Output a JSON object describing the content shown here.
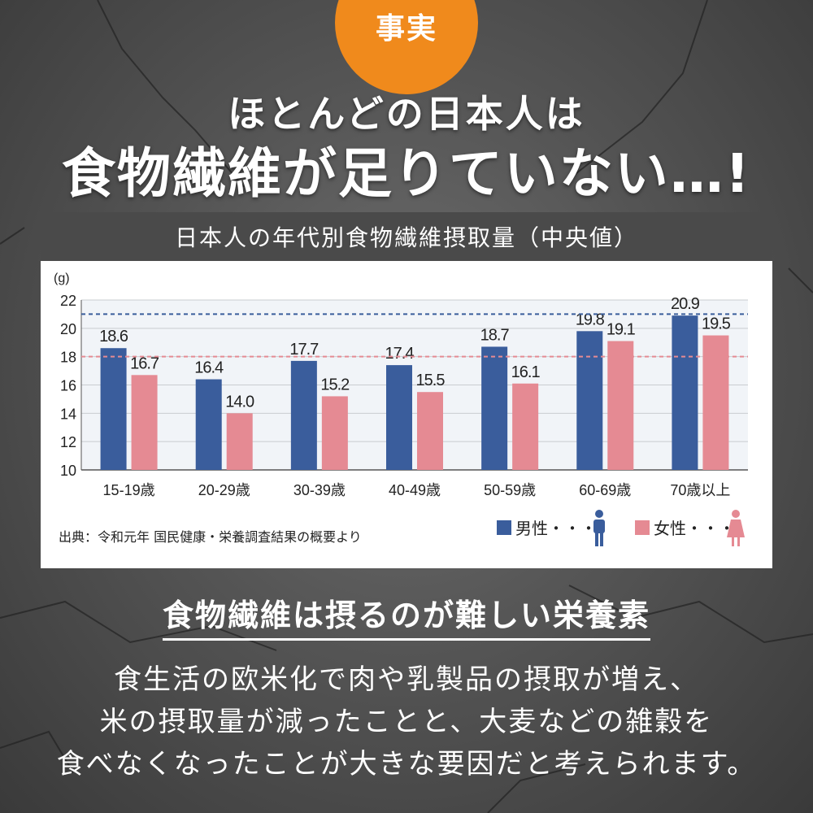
{
  "badge": "事実",
  "headline": {
    "line1": "ほとんどの日本人は",
    "line2": "食物繊維が足りていない…!"
  },
  "colors": {
    "male": "#3a5d9c",
    "female": "#e58a93",
    "badge": "#f08a1c"
  },
  "chart_data": {
    "type": "bar",
    "title": "日本人の年代別食物繊維摂取量（中央値）",
    "ylabel": "(g)",
    "ylim": [
      10,
      22
    ],
    "yticks": [
      "10",
      "12",
      "14",
      "16",
      "18",
      "20",
      "22"
    ],
    "categories": [
      "15-19歳",
      "20-29歳",
      "30-39歳",
      "40-49歳",
      "50-59歳",
      "60-69歳",
      "70歳以上"
    ],
    "series": [
      {
        "name": "男性",
        "values": [
          18.6,
          16.4,
          17.7,
          17.4,
          18.7,
          19.8,
          20.9
        ],
        "labels": [
          "18.6",
          "16.4",
          "17.7",
          "17.4",
          "18.7",
          "19.8",
          "20.9"
        ]
      },
      {
        "name": "女性",
        "values": [
          16.7,
          14.0,
          15.2,
          15.5,
          16.1,
          19.1,
          19.5
        ],
        "labels": [
          "16.7",
          "14.0",
          "15.2",
          "15.5",
          "16.1",
          "19.1",
          "19.5"
        ]
      }
    ],
    "reference_lines": [
      {
        "value": 21,
        "color": "#3a5d9c",
        "style": "dashed"
      },
      {
        "value": 18,
        "color": "#e58a93",
        "style": "dashed"
      }
    ],
    "grid": true,
    "legend": {
      "position": "bottom-right",
      "male_label": "男性・・・",
      "female_label": "女性・・・"
    },
    "source": "出典：令和元年 国民健康・栄養調査結果の概要より"
  },
  "subheading": "食物繊維は摂るのが難しい栄養素",
  "body": {
    "line1": "食生活の欧米化で肉や乳製品の摂取が増え、",
    "line2": "米の摂取量が減ったことと、大麦などの雑穀を",
    "line3": "食べなくなったことが大きな要因だと考えられます。"
  }
}
